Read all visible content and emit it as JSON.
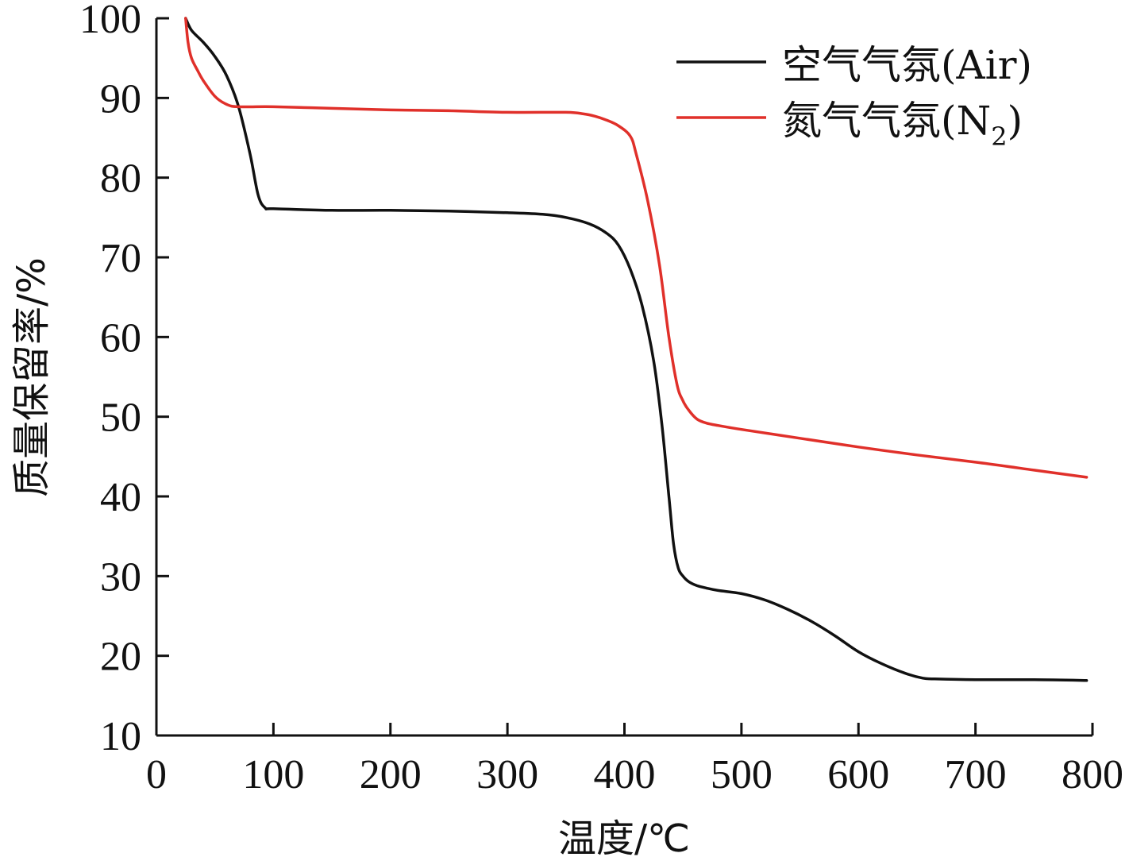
{
  "chart_data": {
    "type": "line",
    "title": "",
    "xlabel": "温度/℃",
    "ylabel": "质量保留率/%",
    "xlim": [
      0,
      800
    ],
    "ylim": [
      10,
      100
    ],
    "xticks": [
      0,
      100,
      200,
      300,
      400,
      500,
      600,
      700,
      800
    ],
    "yticks": [
      10,
      20,
      30,
      40,
      50,
      60,
      70,
      80,
      90,
      100
    ],
    "grid": false,
    "legend_position": "top-right",
    "series": [
      {
        "name": "空气气氛(Air)",
        "legend_main": "空气气氛(Air)",
        "legend_sub": "",
        "legend_tail": "",
        "color": "#111111",
        "x": [
          25,
          30,
          40,
          50,
          60,
          70,
          80,
          87,
          93,
          100,
          150,
          200,
          250,
          300,
          330,
          350,
          370,
          385,
          395,
          405,
          415,
          425,
          432,
          438,
          442,
          446,
          450,
          455,
          462,
          470,
          480,
          500,
          520,
          540,
          560,
          580,
          600,
          620,
          640,
          655,
          665,
          700,
          750,
          795
        ],
        "y": [
          100,
          98.5,
          97,
          95.2,
          92.8,
          89,
          83,
          77.8,
          76.2,
          76.1,
          75.9,
          75.9,
          75.8,
          75.6,
          75.4,
          75.0,
          74.2,
          73.0,
          71.5,
          68.5,
          64,
          57,
          49,
          40,
          34,
          31,
          30,
          29.3,
          28.8,
          28.5,
          28.2,
          27.8,
          27.0,
          25.8,
          24.3,
          22.5,
          20.5,
          19.0,
          17.8,
          17.2,
          17.1,
          17.0,
          17.0,
          16.9
        ]
      },
      {
        "name": "氮气气氛(N2)",
        "legend_main": "氮气气氛(N",
        "legend_sub": "2",
        "legend_tail": ")",
        "color": "#e0302a",
        "x": [
          25,
          27,
          30,
          35,
          40,
          50,
          60,
          70,
          100,
          150,
          200,
          250,
          300,
          350,
          365,
          375,
          385,
          395,
          405,
          410,
          420,
          430,
          438,
          445,
          450,
          455,
          462,
          470,
          480,
          500,
          550,
          600,
          650,
          700,
          750,
          795
        ],
        "y": [
          100,
          97,
          95,
          93.5,
          92.2,
          90.2,
          89.2,
          88.9,
          88.9,
          88.7,
          88.5,
          88.4,
          88.2,
          88.2,
          88.0,
          87.7,
          87.2,
          86.5,
          85.2,
          83.0,
          77.0,
          69.0,
          60.0,
          54.0,
          52.0,
          50.8,
          49.7,
          49.2,
          48.9,
          48.4,
          47.3,
          46.2,
          45.2,
          44.3,
          43.3,
          42.4
        ]
      }
    ]
  }
}
